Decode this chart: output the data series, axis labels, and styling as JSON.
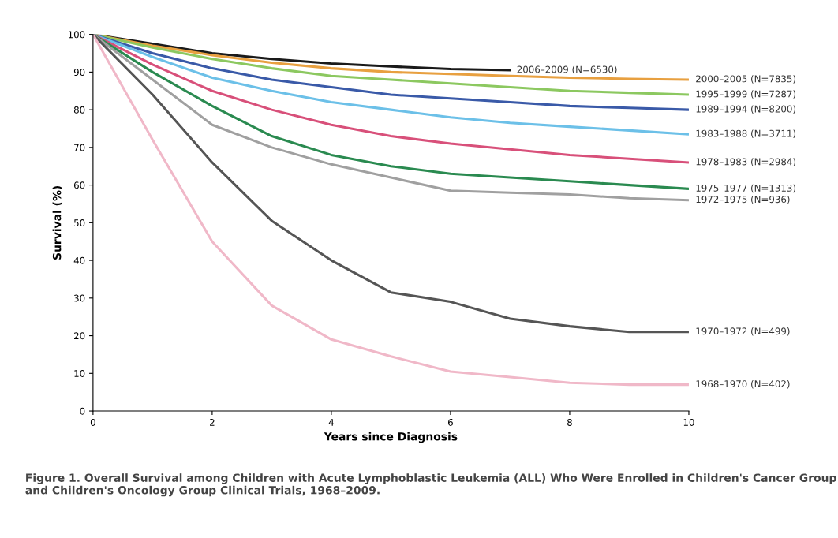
{
  "chart_data": {
    "type": "line",
    "xlabel": "Years since Diagnosis",
    "ylabel": "Survival (%)",
    "xlim": [
      0,
      10
    ],
    "xticks": [
      0,
      2,
      4,
      6,
      8,
      10
    ],
    "ylim": [
      0,
      100
    ],
    "yticks": [
      0,
      10,
      20,
      30,
      40,
      50,
      60,
      70,
      80,
      90,
      100
    ],
    "grid": false,
    "legend": false,
    "marker": "none",
    "line_style": "solid",
    "x": [
      0,
      1,
      2,
      3,
      4,
      5,
      6,
      7,
      8,
      9,
      10
    ],
    "series": [
      {
        "name": "2006–2009 (N=6530)",
        "color": "#1a1a1a",
        "x": [
          0,
          1,
          2,
          3,
          4,
          5,
          6,
          7
        ],
        "values": [
          100,
          97.5,
          95,
          93.5,
          92.3,
          91.5,
          90.8,
          90.5
        ]
      },
      {
        "name": "2000–2005 (N=7835)",
        "color": "#e8a040",
        "values": [
          100,
          97,
          94.5,
          92.5,
          91,
          90,
          89.5,
          89,
          88.5,
          88.2,
          88
        ]
      },
      {
        "name": "1995–1999 (N=7287)",
        "color": "#8cc860",
        "values": [
          100,
          96.5,
          93.5,
          91,
          89,
          88,
          87,
          86,
          85,
          84.5,
          84
        ]
      },
      {
        "name": "1989–1994 (N=8200)",
        "color": "#3a5aa8",
        "values": [
          100,
          95,
          91,
          88,
          86,
          84,
          83,
          82,
          81,
          80.5,
          80
        ]
      },
      {
        "name": "1983–1988 (N=3711)",
        "color": "#6cc0e8",
        "values": [
          100,
          94,
          88.5,
          85,
          82,
          80,
          78,
          76.5,
          75.5,
          74.5,
          73.5
        ]
      },
      {
        "name": "1978–1983 (N=2984)",
        "color": "#d8507a",
        "values": [
          100,
          92,
          85,
          80,
          76,
          73,
          71,
          69.5,
          68,
          67,
          66
        ]
      },
      {
        "name": "1975–1977 (N=1313)",
        "color": "#2a8a50",
        "values": [
          100,
          90,
          81,
          73,
          68,
          65,
          63,
          62,
          61,
          60,
          59
        ]
      },
      {
        "name": "1972–1975 (N=936)",
        "color": "#a0a0a0",
        "values": [
          100,
          88,
          76,
          70,
          65.5,
          62,
          58.5,
          58,
          57.5,
          56.5,
          56
        ]
      },
      {
        "name": "1970–1972 (N=499)",
        "color": "#555555",
        "values": [
          100,
          84,
          66,
          50.5,
          40,
          31.5,
          29,
          24.5,
          22.5,
          21,
          21
        ]
      },
      {
        "name": "1968–1970 (N=402)",
        "color": "#f0b8c8",
        "values": [
          100,
          72,
          45,
          28,
          19,
          14.5,
          10.5,
          9,
          7.5,
          7,
          7
        ]
      }
    ],
    "annotations": [
      "Figure 1. Overall Survival among Children with Acute Lymphoblastic Leukemia (ALL) Who Were Enrolled in Children's Cancer Group and Children's Oncology Group Clinical Trials, 1968–2009."
    ]
  }
}
